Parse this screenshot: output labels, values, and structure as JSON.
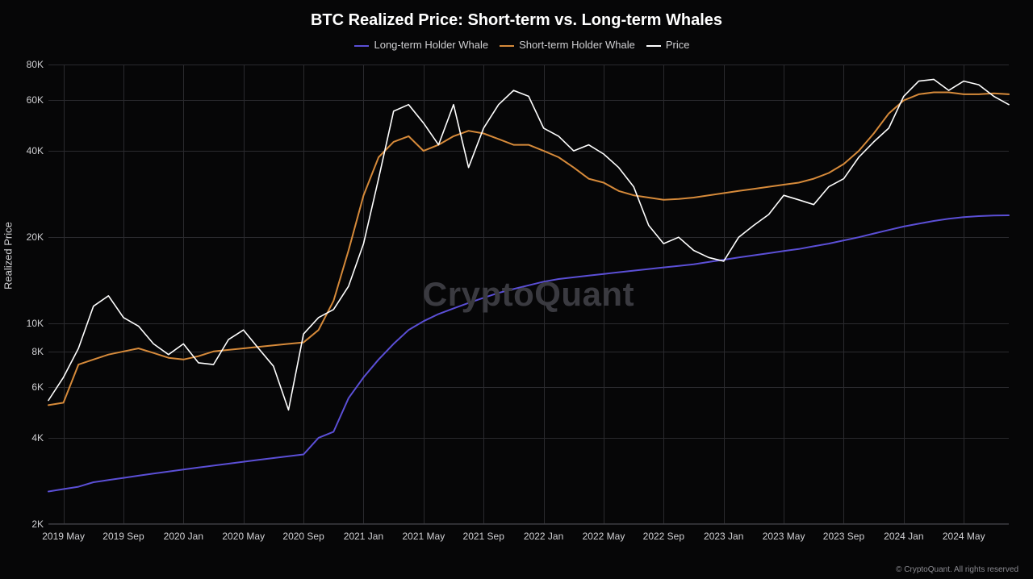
{
  "chart": {
    "type": "line",
    "title": "BTC Realized Price: Short-term vs. Long-term Whales",
    "title_fontsize": 20,
    "title_color": "#ffffff",
    "background_color": "#060607",
    "grid_color": "#2a2a2e",
    "axis_color": "#3a3a3f",
    "tick_color": "#d0d0d3",
    "tick_fontsize": 12,
    "watermark": "CryptoQuant",
    "watermark_color": "#3a3a40",
    "copyright": "© CryptoQuant. All rights reserved",
    "copyright_color": "#8a8a90",
    "y_axis": {
      "label": "Realized Price",
      "scale": "log",
      "min": 2000,
      "max": 80000,
      "ticks": [
        2000,
        4000,
        6000,
        8000,
        10000,
        20000,
        40000,
        60000,
        80000
      ],
      "tick_labels": [
        "2K",
        "4K",
        "6K",
        "8K",
        "10K",
        "20K",
        "40K",
        "60K",
        "80K"
      ]
    },
    "x_axis": {
      "min": 0,
      "max": 64,
      "ticks": [
        1,
        5,
        9,
        13,
        17,
        21,
        25,
        29,
        33,
        37,
        41,
        45,
        49,
        53,
        57,
        61
      ],
      "tick_labels": [
        "2019 May",
        "2019 Sep",
        "2020 Jan",
        "2020 May",
        "2020 Sep",
        "2021 Jan",
        "2021 May",
        "2021 Sep",
        "2022 Jan",
        "2022 May",
        "2022 Sep",
        "2023 Jan",
        "2023 May",
        "2023 Sep",
        "2024 Jan",
        "2024 May"
      ]
    },
    "legend": [
      {
        "label": "Long-term Holder Whale",
        "color": "#5b4fd6"
      },
      {
        "label": "Short-term Holder Whale",
        "color": "#d68a3a"
      },
      {
        "label": "Price",
        "color": "#ffffff"
      }
    ],
    "series": [
      {
        "name": "Long-term Holder Whale",
        "color": "#5b4fd6",
        "line_width": 2,
        "data": [
          2600,
          2650,
          2700,
          2800,
          2850,
          2900,
          2950,
          3000,
          3050,
          3100,
          3150,
          3200,
          3250,
          3300,
          3350,
          3400,
          3450,
          3500,
          4000,
          4200,
          5500,
          6500,
          7500,
          8500,
          9500,
          10200,
          10800,
          11300,
          11800,
          12300,
          12800,
          13200,
          13600,
          14000,
          14300,
          14500,
          14700,
          14900,
          15100,
          15300,
          15500,
          15700,
          15900,
          16100,
          16400,
          16700,
          17000,
          17300,
          17600,
          17900,
          18200,
          18600,
          19000,
          19500,
          20000,
          20600,
          21200,
          21800,
          22300,
          22800,
          23200,
          23500,
          23700,
          23800,
          23850
        ]
      },
      {
        "name": "Short-term Holder Whale",
        "color": "#d68a3a",
        "line_width": 2,
        "data": [
          5200,
          5300,
          7200,
          7500,
          7800,
          8000,
          8200,
          7900,
          7600,
          7500,
          7700,
          8000,
          8100,
          8200,
          8300,
          8400,
          8500,
          8600,
          9500,
          12000,
          18000,
          28000,
          38000,
          43000,
          45000,
          40000,
          42000,
          45000,
          47000,
          46000,
          44000,
          42000,
          42000,
          40000,
          38000,
          35000,
          32000,
          31000,
          29000,
          28000,
          27500,
          27000,
          27200,
          27500,
          28000,
          28500,
          29000,
          29500,
          30000,
          30500,
          31000,
          32000,
          33500,
          36000,
          40000,
          46000,
          54000,
          60000,
          63000,
          64000,
          64000,
          63000,
          63000,
          63500,
          63000
        ]
      },
      {
        "name": "Price",
        "color": "#ffffff",
        "line_width": 1.6,
        "data": [
          5400,
          6500,
          8200,
          11500,
          12500,
          10500,
          9800,
          8500,
          7800,
          8500,
          7300,
          7200,
          8800,
          9500,
          8200,
          7100,
          5000,
          9200,
          10500,
          11200,
          13500,
          19000,
          32000,
          55000,
          58000,
          50000,
          42000,
          58000,
          35000,
          48000,
          58000,
          65000,
          62000,
          48000,
          45000,
          40000,
          42000,
          39000,
          35000,
          30000,
          22000,
          19000,
          20000,
          18000,
          17000,
          16500,
          20000,
          22000,
          24000,
          28000,
          27000,
          26000,
          30000,
          32000,
          38000,
          43000,
          48000,
          62000,
          70000,
          71000,
          65000,
          70000,
          68000,
          62000,
          58000
        ]
      }
    ]
  }
}
